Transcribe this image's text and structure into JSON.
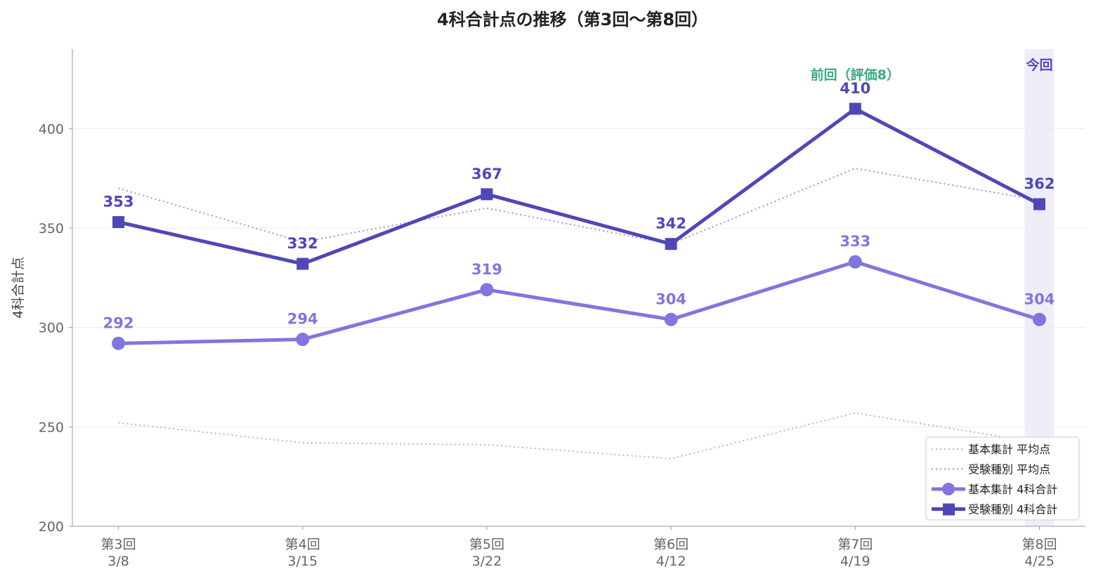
{
  "chart_data": {
    "type": "line",
    "title": "4科合計点の推移（第3回〜第8回）",
    "xlabel": "",
    "ylabel": "4科合計点",
    "categories": [
      [
        "第3回",
        "3/8"
      ],
      [
        "第4回",
        "3/15"
      ],
      [
        "第5回",
        "3/22"
      ],
      [
        "第6回",
        "4/12"
      ],
      [
        "第7回",
        "4/19"
      ],
      [
        "第8回",
        "4/25"
      ]
    ],
    "ylim": [
      200,
      440
    ],
    "yticks": [
      200,
      250,
      300,
      350,
      400
    ],
    "grid": "horizontal",
    "legend_position": "bottom-right",
    "series": [
      {
        "name": "基本集計 平均点",
        "values": [
          252,
          242,
          241,
          234,
          257,
          242
        ],
        "style": "dotted",
        "color": "#b9b0ea"
      },
      {
        "name": "受験種別 平均点",
        "values": [
          370,
          343,
          360,
          342,
          380,
          364
        ],
        "style": "dotted",
        "color": "#9e92dd"
      },
      {
        "name": "基本集計 4科合計",
        "values": [
          292,
          294,
          319,
          304,
          333,
          304
        ],
        "style": "solid",
        "marker": "circle",
        "color": "#8175df",
        "labels": true
      },
      {
        "name": "受験種別 4科合計",
        "values": [
          353,
          332,
          367,
          342,
          410,
          362
        ],
        "style": "solid",
        "marker": "square",
        "color": "#4f47b8",
        "labels": true
      }
    ],
    "annotations": [
      {
        "text": "前回（評価8）",
        "category_index": 4,
        "color": "#3aa981"
      },
      {
        "text": "今回",
        "category_index": 5,
        "color": "#4f47b8",
        "highlight_color": "#efedf8"
      }
    ]
  }
}
